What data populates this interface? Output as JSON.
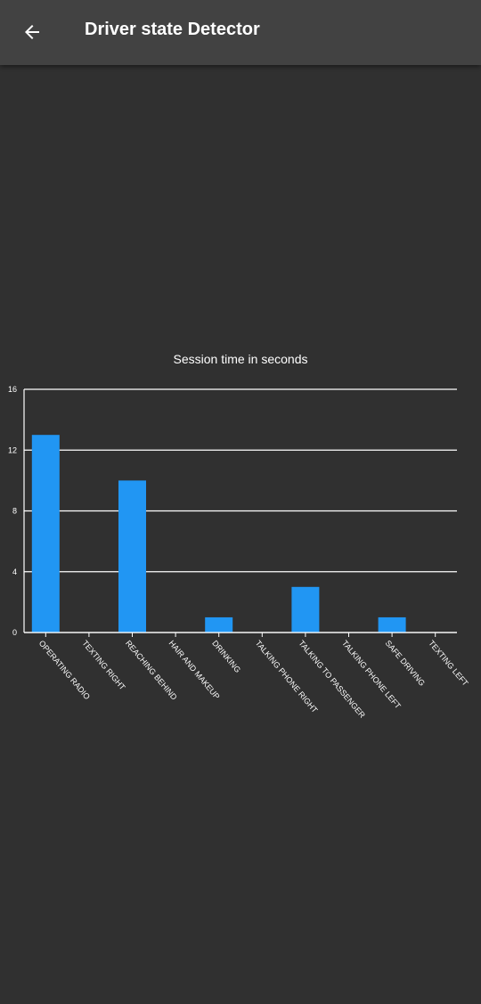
{
  "app_bar": {
    "title": "Driver state Detector",
    "back_icon": "arrow-back-icon",
    "background": "#424242"
  },
  "colors": {
    "background": "#303030",
    "bar": "#2196F3",
    "axis": "#ffffff",
    "text": "#ffffff"
  },
  "chart_data": {
    "type": "bar",
    "title": "Session time in seconds",
    "xlabel": "",
    "ylabel": "",
    "categories": [
      "OPERATING RADIO",
      "TEXTING RIGHT",
      "REACHING BEHIND",
      "HAIR AND MAKEUP",
      "DRINKING",
      "TALKING PHONE RIGHT",
      "TALKING TO PASSENGER",
      "TALKING PHONE LEFT",
      "SAFE DRIVING",
      "TEXTING LEFT"
    ],
    "values": [
      13,
      0,
      10,
      0,
      1,
      0,
      3,
      0,
      1,
      0
    ],
    "ylim": [
      0,
      16
    ],
    "yticks": [
      0,
      4,
      8,
      12,
      16
    ],
    "grid": true,
    "legend": "none"
  }
}
